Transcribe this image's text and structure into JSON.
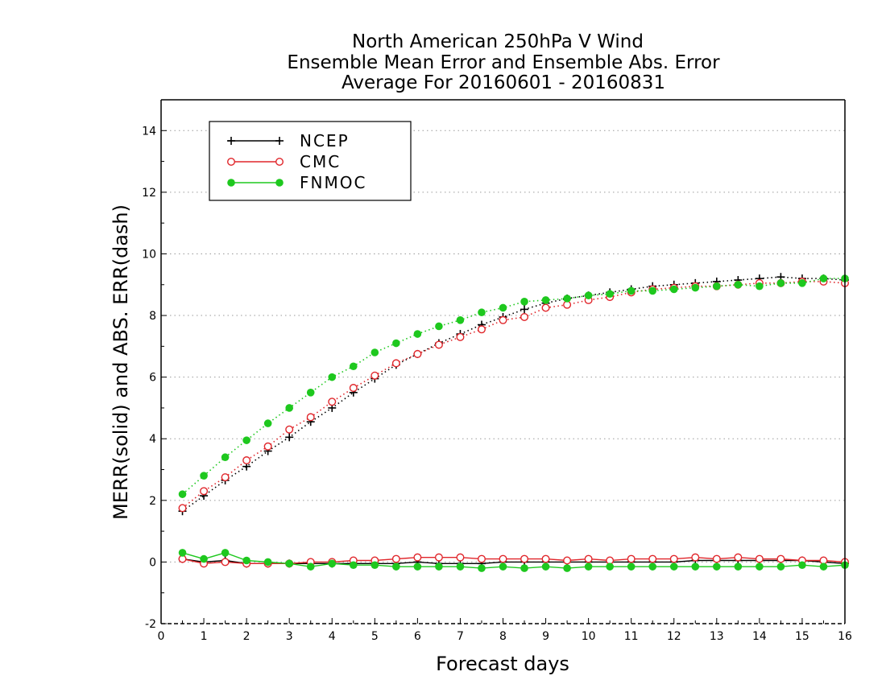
{
  "chart_data": {
    "type": "line",
    "title_lines": [
      "North American 250hPa V Wind",
      "Ensemble Mean Error and Ensemble Abs. Error",
      "Average For 20160601 - 20160831"
    ],
    "xlabel": "Forecast days",
    "ylabel": "MERR(solid) and ABS. ERR(dash)",
    "xlim": [
      0,
      16
    ],
    "ylim": [
      -2,
      15
    ],
    "xticks": [
      "0",
      "1",
      "2",
      "3",
      "4",
      "5",
      "6",
      "7",
      "8",
      "9",
      "10",
      "11",
      "12",
      "13",
      "14",
      "15",
      "16"
    ],
    "yticks": [
      "-2",
      "0",
      "2",
      "4",
      "6",
      "8",
      "10",
      "12",
      "14"
    ],
    "grid": "horizontal dotted",
    "legend_position": "top-left",
    "x": [
      0.5,
      1,
      1.5,
      2,
      2.5,
      3,
      3.5,
      4,
      4.5,
      5,
      5.5,
      6,
      6.5,
      7,
      7.5,
      8,
      8.5,
      9,
      9.5,
      10,
      10.5,
      11,
      11.5,
      12,
      12.5,
      13,
      13.5,
      14,
      14.5,
      15,
      15.5,
      16
    ],
    "series": [
      {
        "name": "NCEP",
        "color": "#000000",
        "marker": "plus",
        "abs_err": [
          1.65,
          2.15,
          2.65,
          3.1,
          3.6,
          4.05,
          4.55,
          5.0,
          5.5,
          5.95,
          6.4,
          6.75,
          7.1,
          7.4,
          7.7,
          7.95,
          8.2,
          8.4,
          8.55,
          8.65,
          8.75,
          8.85,
          8.95,
          9.0,
          9.05,
          9.1,
          9.15,
          9.2,
          9.25,
          9.2,
          9.2,
          9.15
        ],
        "mean_err": [
          0.1,
          0.0,
          0.05,
          -0.05,
          -0.05,
          -0.05,
          -0.05,
          -0.05,
          -0.05,
          -0.05,
          -0.05,
          0.0,
          -0.05,
          -0.05,
          -0.05,
          0.0,
          0.0,
          0.0,
          0.0,
          0.0,
          0.0,
          0.0,
          0.0,
          0.0,
          0.05,
          0.05,
          0.05,
          0.05,
          0.05,
          0.05,
          0.0,
          -0.05
        ]
      },
      {
        "name": "CMC",
        "color": "#e0262b",
        "marker": "open-circle",
        "abs_err": [
          1.75,
          2.3,
          2.75,
          3.3,
          3.75,
          4.3,
          4.7,
          5.2,
          5.65,
          6.05,
          6.45,
          6.75,
          7.05,
          7.3,
          7.55,
          7.85,
          7.95,
          8.25,
          8.35,
          8.5,
          8.6,
          8.75,
          8.85,
          8.9,
          8.95,
          8.95,
          9.0,
          9.05,
          9.05,
          9.1,
          9.1,
          9.05
        ],
        "mean_err": [
          0.1,
          -0.05,
          0.0,
          -0.05,
          -0.05,
          -0.05,
          0.0,
          0.0,
          0.05,
          0.05,
          0.1,
          0.15,
          0.15,
          0.15,
          0.1,
          0.1,
          0.1,
          0.1,
          0.05,
          0.1,
          0.05,
          0.1,
          0.1,
          0.1,
          0.15,
          0.1,
          0.15,
          0.1,
          0.1,
          0.05,
          0.05,
          0.0
        ]
      },
      {
        "name": "FNMOC",
        "color": "#1ec81e",
        "marker": "filled-circle",
        "abs_err": [
          2.2,
          2.8,
          3.4,
          3.95,
          4.5,
          5.0,
          5.5,
          6.0,
          6.35,
          6.8,
          7.1,
          7.4,
          7.65,
          7.85,
          8.1,
          8.25,
          8.45,
          8.5,
          8.55,
          8.65,
          8.7,
          8.8,
          8.8,
          8.85,
          8.9,
          8.95,
          9.0,
          8.95,
          9.05,
          9.05,
          9.2,
          9.2
        ],
        "mean_err": [
          0.3,
          0.1,
          0.3,
          0.05,
          0.0,
          -0.05,
          -0.15,
          -0.05,
          -0.1,
          -0.1,
          -0.15,
          -0.15,
          -0.15,
          -0.15,
          -0.2,
          -0.15,
          -0.2,
          -0.15,
          -0.2,
          -0.15,
          -0.15,
          -0.15,
          -0.15,
          -0.15,
          -0.15,
          -0.15,
          -0.15,
          -0.15,
          -0.15,
          -0.1,
          -0.15,
          -0.1
        ]
      }
    ]
  }
}
